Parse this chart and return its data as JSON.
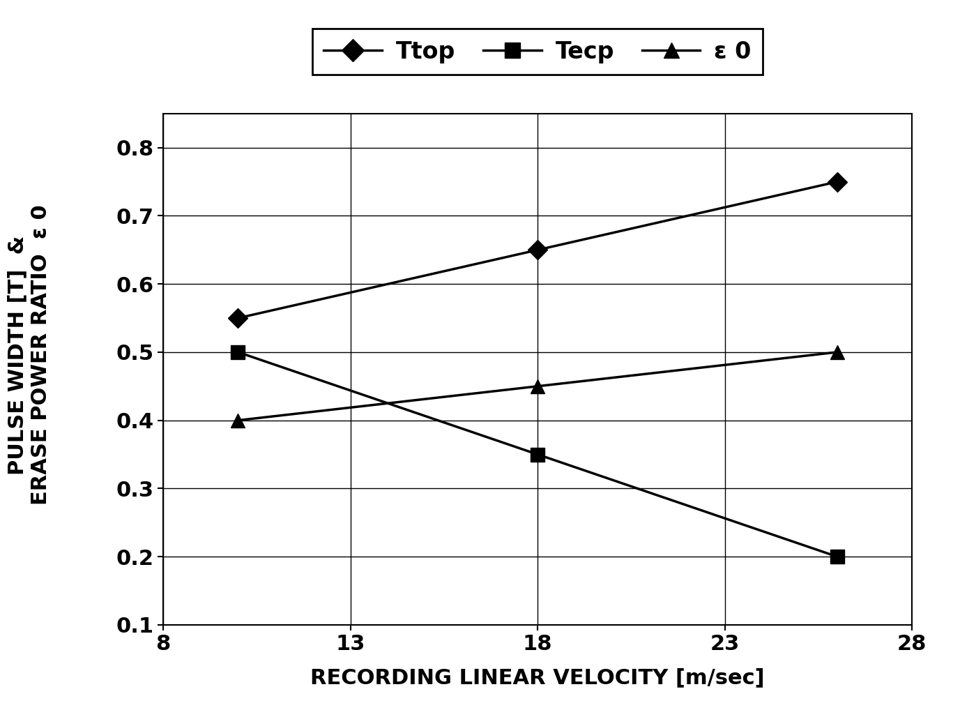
{
  "title": "",
  "xlabel": "RECORDING LINEAR VELOCITY [m/sec]",
  "ylabel_line1": "PULSE WIDTH [T]  &",
  "ylabel_line2": "ERASE POWER RATIO  ε 0",
  "xlim": [
    8,
    28
  ],
  "ylim": [
    0.1,
    0.85
  ],
  "xticks": [
    8,
    13,
    18,
    23,
    28
  ],
  "yticks": [
    0.1,
    0.2,
    0.3,
    0.4,
    0.5,
    0.6,
    0.7,
    0.8
  ],
  "series": [
    {
      "label": "Ttop",
      "x": [
        10,
        18,
        26
      ],
      "y": [
        0.55,
        0.65,
        0.75
      ],
      "marker": "D",
      "markersize": 14,
      "linewidth": 2.5,
      "color": "#000000"
    },
    {
      "label": "Tecp",
      "x": [
        10,
        18,
        26
      ],
      "y": [
        0.5,
        0.35,
        0.2
      ],
      "marker": "s",
      "markersize": 14,
      "linewidth": 2.5,
      "color": "#000000"
    },
    {
      "label": "ε 0",
      "x": [
        10,
        18,
        26
      ],
      "y": [
        0.4,
        0.45,
        0.5
      ],
      "marker": "^",
      "markersize": 14,
      "linewidth": 2.5,
      "color": "#000000"
    }
  ],
  "background_color": "#ffffff",
  "grid_color": "#000000",
  "font_color": "#000000",
  "tick_fontsize": 22,
  "label_fontsize": 22,
  "legend_fontsize": 24
}
